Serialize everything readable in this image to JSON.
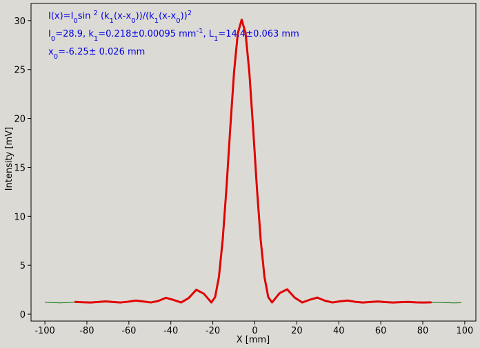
{
  "chart_data": {
    "type": "line",
    "x_label": "X [mm]",
    "y_label": "Intensity [mV]",
    "xlim": [
      -106.6,
      105.3
    ],
    "ylim": [
      -0.7,
      31.75
    ],
    "xticks": [
      -100,
      -80,
      -60,
      -40,
      -20,
      0,
      20,
      40,
      60,
      80,
      100
    ],
    "yticks": [
      0,
      5,
      10,
      15,
      20,
      25,
      30
    ],
    "grid": false,
    "annotations": [
      [
        "I(x)=I",
        {
          "sub": "0"
        },
        "sin ",
        {
          "sup": "2"
        },
        " (k",
        {
          "sub": "1"
        },
        "(x-x",
        {
          "sub": "0"
        },
        "))/(k",
        {
          "sub": "1"
        },
        "(x-x",
        {
          "sub": "0"
        },
        "))",
        {
          "sup": "2"
        }
      ],
      [
        "I",
        {
          "sub": "0"
        },
        "=28.9,  k",
        {
          "sub": "1"
        },
        "=0.218±0.00095 mm",
        {
          "sup": "-1"
        },
        ",   L",
        {
          "sub": "1"
        },
        "=14.4±0.063 mm"
      ],
      [
        "x",
        {
          "sub": "0"
        },
        "=-6.25±   0.026 mm"
      ]
    ],
    "annotation_color": "#0000e0",
    "series": [
      {
        "color": "#007000",
        "width": 1,
        "x": [
          -99.9,
          -96.3,
          -92.7,
          -89.1,
          -85.5,
          -81.9,
          -78.3,
          -74.7,
          -71.1,
          -67.5,
          -63.9,
          -60.3,
          -56.7,
          -53.1,
          -49.5,
          -45.9,
          -42.3,
          -38.7,
          -35.1,
          -31.5,
          -27.9,
          -24.3,
          -20.7,
          -18.9,
          -17.1,
          -15.3,
          -13.5,
          -11.7,
          -9.9,
          -8.1,
          -6.25,
          -4.4,
          -2.6,
          -0.8,
          1.0,
          2.8,
          4.6,
          6.4,
          8.2,
          11.8,
          15.4,
          19.0,
          22.6,
          26.2,
          29.8,
          33.4,
          37.0,
          40.6,
          44.2,
          47.8,
          51.4,
          55.0,
          58.6,
          62.2,
          65.8,
          69.4,
          73.0,
          76.6,
          80.2,
          83.8,
          87.4,
          91.0,
          94.6,
          98.2
        ],
        "values": [
          1.22,
          1.19,
          1.15,
          1.19,
          1.25,
          1.2,
          1.15,
          1.22,
          1.29,
          1.23,
          1.15,
          1.25,
          1.39,
          1.29,
          1.15,
          1.34,
          1.62,
          1.44,
          1.15,
          1.63,
          2.45,
          2.09,
          1.15,
          1.71,
          3.75,
          7.55,
          12.85,
          18.9,
          24.6,
          28.6,
          30.05,
          28.6,
          24.6,
          18.9,
          12.85,
          7.55,
          3.75,
          1.71,
          1.15,
          2.09,
          2.45,
          1.63,
          1.15,
          1.44,
          1.62,
          1.34,
          1.15,
          1.29,
          1.39,
          1.25,
          1.15,
          1.23,
          1.29,
          1.22,
          1.15,
          1.2,
          1.25,
          1.19,
          1.15,
          1.19,
          1.22,
          1.18,
          1.15,
          1.17
        ]
      },
      {
        "color": "#e00000",
        "width": 3,
        "x": [
          -85.5,
          -81.9,
          -78.3,
          -74.7,
          -71.1,
          -67.5,
          -63.9,
          -60.3,
          -56.7,
          -53.1,
          -49.5,
          -45.9,
          -42.3,
          -38.7,
          -35.1,
          -31.5,
          -27.9,
          -24.3,
          -20.7,
          -18.9,
          -17.1,
          -15.3,
          -13.5,
          -11.7,
          -9.9,
          -8.1,
          -6.25,
          -4.4,
          -2.6,
          -0.8,
          1.0,
          2.8,
          4.6,
          6.4,
          8.2,
          11.8,
          15.4,
          19.0,
          22.6,
          26.2,
          29.8,
          33.4,
          37.0,
          40.6,
          44.2,
          47.8,
          51.4,
          55.0,
          58.6,
          62.2,
          65.8,
          69.4,
          73.0,
          76.6,
          80.2,
          83.8
        ],
        "values": [
          1.26,
          1.22,
          1.2,
          1.25,
          1.31,
          1.25,
          1.2,
          1.28,
          1.4,
          1.3,
          1.2,
          1.36,
          1.68,
          1.46,
          1.2,
          1.65,
          2.5,
          2.1,
          1.2,
          1.75,
          3.8,
          7.6,
          12.9,
          19.0,
          24.7,
          28.7,
          30.1,
          28.7,
          24.7,
          19.0,
          12.9,
          7.6,
          3.8,
          1.75,
          1.2,
          2.15,
          2.55,
          1.7,
          1.2,
          1.48,
          1.7,
          1.38,
          1.2,
          1.32,
          1.4,
          1.27,
          1.2,
          1.25,
          1.3,
          1.24,
          1.2,
          1.23,
          1.26,
          1.21,
          1.2,
          1.21
        ]
      }
    ]
  }
}
